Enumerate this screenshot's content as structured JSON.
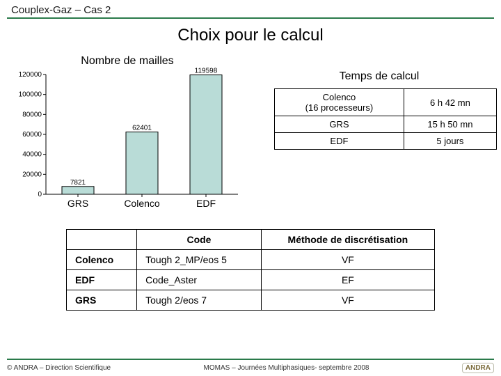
{
  "header": {
    "title": "Couplex-Gaz – Cas 2"
  },
  "title": "Choix pour le calcul",
  "chart": {
    "type": "bar",
    "title": "Nombre de mailles",
    "categories": [
      "GRS",
      "Colenco",
      "EDF"
    ],
    "values": [
      7821,
      62401,
      119598
    ],
    "bar_color": "#b9dcd7",
    "bar_border": "#000000",
    "ylim": [
      0,
      120000
    ],
    "ytick_step": 20000,
    "yticks": [
      0,
      20000,
      40000,
      60000,
      80000,
      100000,
      120000
    ],
    "bar_width": 0.5,
    "label_fontsize": 10,
    "title_fontsize": 16,
    "background_color": "#ffffff",
    "axis_color": "#000000",
    "tick_color": "#000000"
  },
  "time_table": {
    "title": "Temps de calcul",
    "rows": [
      {
        "label": "Colenco\n(16 processeurs)",
        "time": "6 h 42 mn"
      },
      {
        "label": "GRS",
        "time": "15 h 50 mn"
      },
      {
        "label": "EDF",
        "time": "5 jours"
      }
    ]
  },
  "disc_table": {
    "columns": [
      "",
      "Code",
      "Méthode de discrétisation"
    ],
    "rows": [
      {
        "org": "Colenco",
        "code": "Tough 2_MP/eos 5",
        "method": "VF"
      },
      {
        "org": "EDF",
        "code": "Code_Aster",
        "method": "EF"
      },
      {
        "org": "GRS",
        "code": "Tough 2/eos 7",
        "method": "VF"
      }
    ]
  },
  "footer": {
    "left": "© ANDRA – Direction Scientifique",
    "center": "MOMAS – Journées Multiphasiques- septembre 2008",
    "logo": "ANDRA"
  },
  "colors": {
    "rule": "#2a7a4a",
    "text": "#1a1a1a"
  }
}
